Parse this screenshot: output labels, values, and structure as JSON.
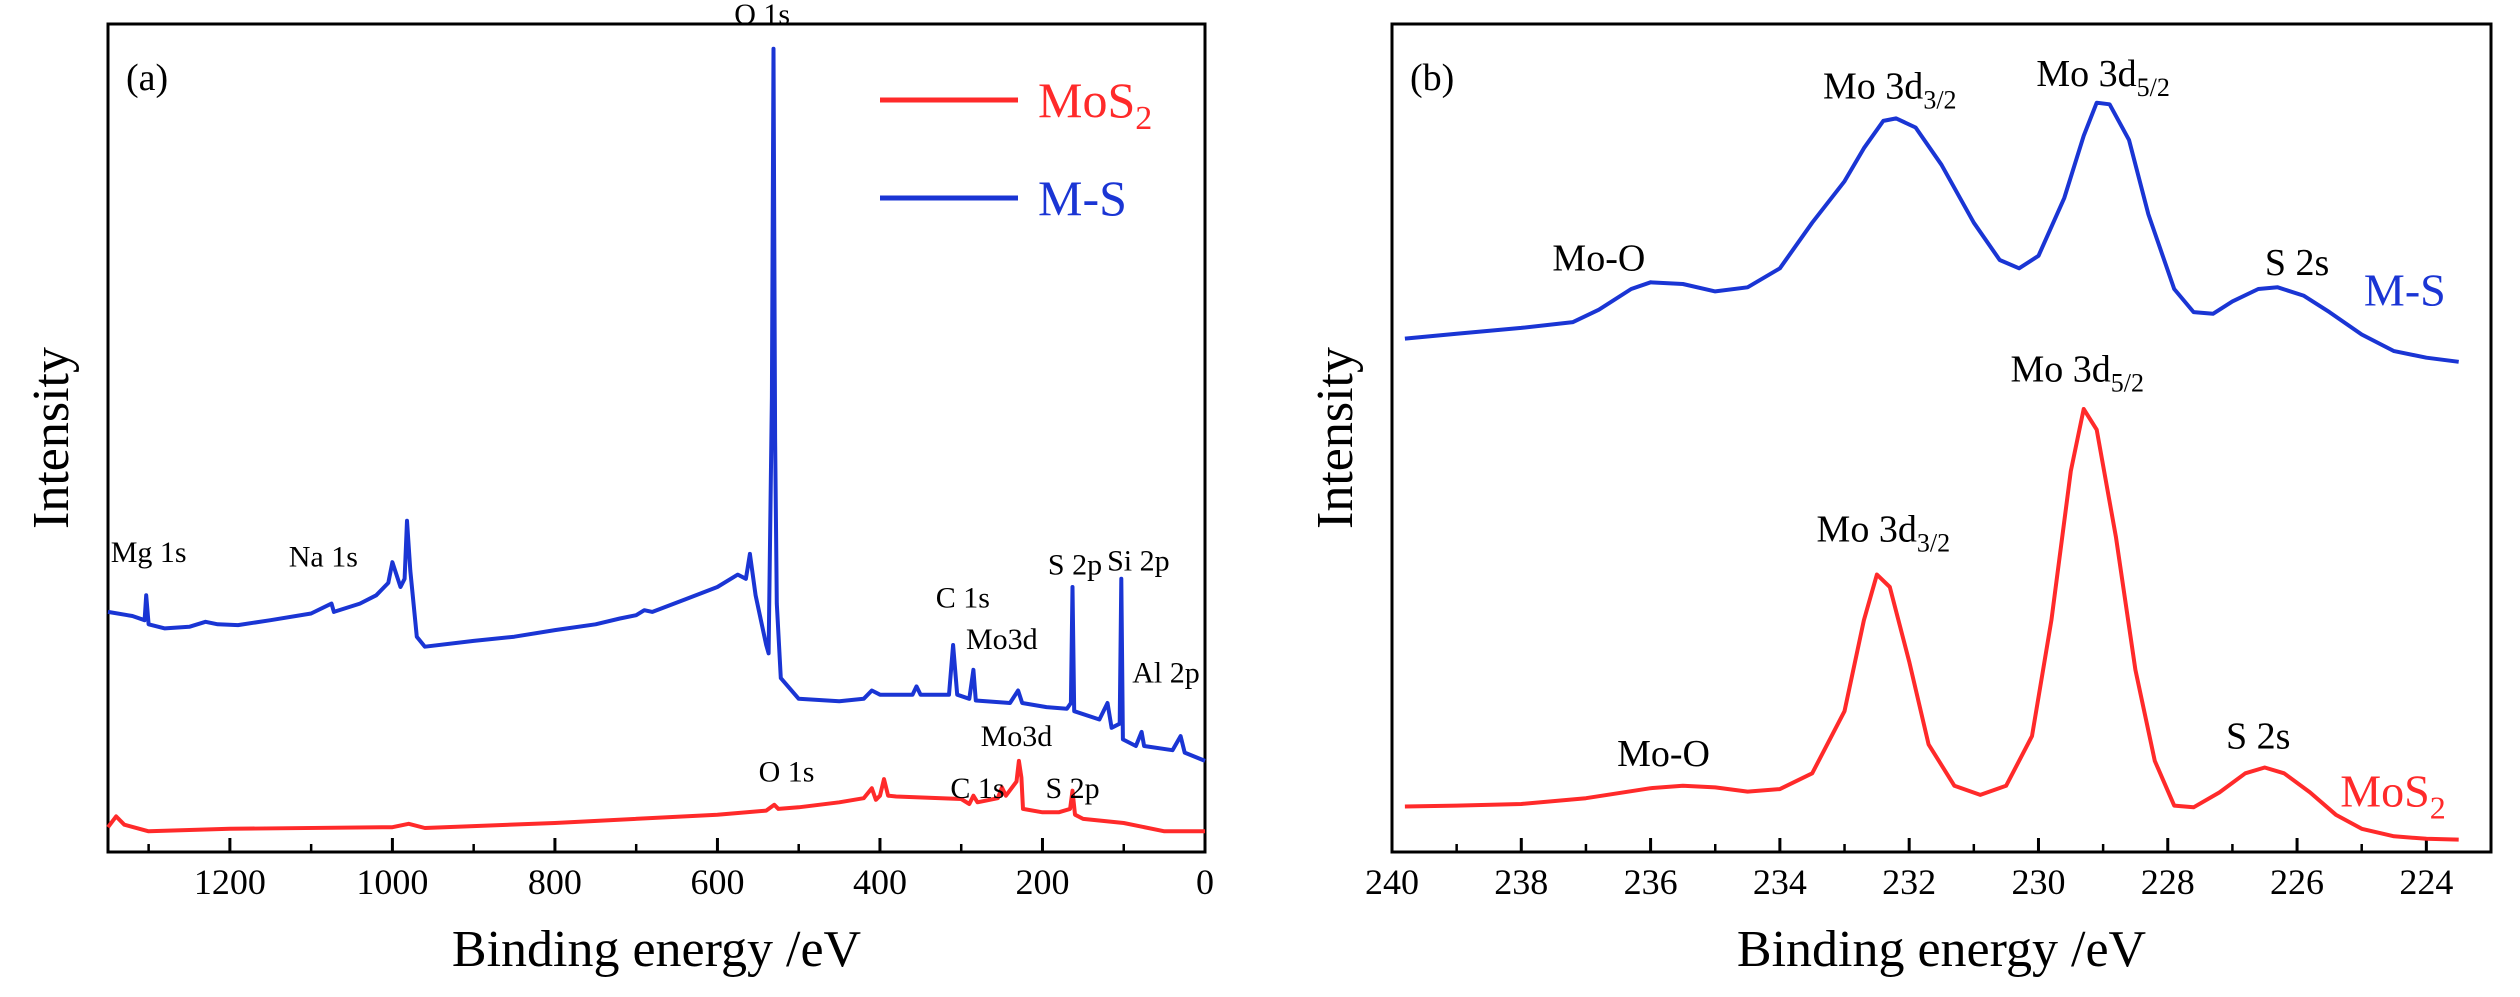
{
  "chart_data": [
    {
      "type": "line",
      "panel_label": "(a)",
      "xlabel": "Binding energy /eV",
      "ylabel": "Intensity",
      "xlim": [
        1350,
        0
      ],
      "ylim": [
        0,
        100
      ],
      "x_reversed": true,
      "xticks": [
        1200,
        1000,
        800,
        600,
        400,
        200,
        0
      ],
      "y_tick_labels": false,
      "legend": {
        "placement": "top-right",
        "entries": [
          {
            "label": "MoS",
            "sub": "2",
            "color": "#ff2a2a"
          },
          {
            "label": "M-S",
            "sub": "",
            "color": "#1a35d4"
          }
        ]
      },
      "series": [
        {
          "name": "M-S",
          "color": "#1a35d4",
          "points": [
            [
              1350,
              29
            ],
            [
              1320,
              28.5
            ],
            [
              1305,
              28
            ],
            [
              1303,
              31
            ],
            [
              1300,
              27.5
            ],
            [
              1280,
              27
            ],
            [
              1250,
              27.2
            ],
            [
              1230,
              27.8
            ],
            [
              1215,
              27.5
            ],
            [
              1190,
              27.4
            ],
            [
              1150,
              28
            ],
            [
              1100,
              28.8
            ],
            [
              1075,
              30
            ],
            [
              1072,
              29
            ],
            [
              1040,
              30
            ],
            [
              1020,
              31
            ],
            [
              1005,
              32.5
            ],
            [
              1000,
              35
            ],
            [
              990,
              32
            ],
            [
              985,
              33
            ],
            [
              982,
              40
            ],
            [
              978,
              34
            ],
            [
              970,
              26
            ],
            [
              960,
              24.8
            ],
            [
              900,
              25.5
            ],
            [
              850,
              26
            ],
            [
              800,
              26.8
            ],
            [
              750,
              27.5
            ],
            [
              720,
              28.2
            ],
            [
              700,
              28.6
            ],
            [
              690,
              29.2
            ],
            [
              680,
              29
            ],
            [
              640,
              30.5
            ],
            [
              600,
              32
            ],
            [
              575,
              33.5
            ],
            [
              565,
              33
            ],
            [
              560,
              36
            ],
            [
              553,
              31
            ],
            [
              540,
              25
            ],
            [
              537,
              24
            ],
            [
              533,
              55
            ],
            [
              531,
              97
            ],
            [
              529,
              50
            ],
            [
              527,
              30
            ],
            [
              522,
              21
            ],
            [
              500,
              18.5
            ],
            [
              450,
              18.2
            ],
            [
              420,
              18.5
            ],
            [
              410,
              19.5
            ],
            [
              400,
              19
            ],
            [
              360,
              19
            ],
            [
              355,
              20
            ],
            [
              350,
              19
            ],
            [
              315,
              19
            ],
            [
              310,
              25
            ],
            [
              305,
              19
            ],
            [
              290,
              18.5
            ],
            [
              285,
              22
            ],
            [
              282,
              18.3
            ],
            [
              240,
              18
            ],
            [
              230,
              19.5
            ],
            [
              225,
              18
            ],
            [
              195,
              17.5
            ],
            [
              170,
              17.3
            ],
            [
              165,
              18
            ],
            [
              163,
              32
            ],
            [
              161,
              17
            ],
            [
              130,
              16
            ],
            [
              120,
              18
            ],
            [
              115,
              15
            ],
            [
              105,
              15.5
            ],
            [
              103,
              33
            ],
            [
              101,
              13.6
            ],
            [
              85,
              12.8
            ],
            [
              78,
              14.5
            ],
            [
              75,
              12.8
            ],
            [
              40,
              12.3
            ],
            [
              30,
              14
            ],
            [
              25,
              12
            ],
            [
              0,
              11
            ]
          ]
        },
        {
          "name": "MoS",
          "color": "#ff2a2a",
          "points": [
            [
              1350,
              3
            ],
            [
              1340,
              4.3
            ],
            [
              1330,
              3.3
            ],
            [
              1300,
              2.5
            ],
            [
              1200,
              2.8
            ],
            [
              1000,
              3
            ],
            [
              980,
              3.4
            ],
            [
              960,
              2.9
            ],
            [
              800,
              3.5
            ],
            [
              600,
              4.5
            ],
            [
              540,
              5
            ],
            [
              530,
              5.7
            ],
            [
              525,
              5.2
            ],
            [
              500,
              5.4
            ],
            [
              450,
              6
            ],
            [
              420,
              6.5
            ],
            [
              410,
              7.7
            ],
            [
              405,
              6.3
            ],
            [
              400,
              6.8
            ],
            [
              395,
              8.8
            ],
            [
              390,
              6.8
            ],
            [
              380,
              6.7
            ],
            [
              300,
              6.4
            ],
            [
              290,
              5.8
            ],
            [
              285,
              6.8
            ],
            [
              280,
              6
            ],
            [
              255,
              6.5
            ],
            [
              250,
              7.8
            ],
            [
              245,
              6.8
            ],
            [
              232,
              8.5
            ],
            [
              229,
              11
            ],
            [
              226,
              9
            ],
            [
              224,
              5.2
            ],
            [
              200,
              4.8
            ],
            [
              180,
              4.8
            ],
            [
              166,
              5.2
            ],
            [
              163,
              7.4
            ],
            [
              160,
              4.5
            ],
            [
              150,
              4
            ],
            [
              100,
              3.5
            ],
            [
              50,
              2.5
            ],
            [
              0,
              2.5
            ]
          ]
        }
      ],
      "annotations": [
        {
          "text": "O 1s",
          "x": 545,
          "y": 100
        },
        {
          "text": "Mg 1s",
          "x": 1300,
          "y": 35
        },
        {
          "text": "Na 1s",
          "x": 1085,
          "y": 34.5
        },
        {
          "text": "C 1s",
          "x": 298,
          "y": 29.5
        },
        {
          "text": "Mo3d",
          "x": 250,
          "y": 24.5
        },
        {
          "text": "S 2p",
          "x": 160,
          "y": 33.5
        },
        {
          "text": "Si 2p",
          "x": 82,
          "y": 34
        },
        {
          "text": "Al 2p",
          "x": 48,
          "y": 20.5
        },
        {
          "text": "O 1s",
          "x": 515,
          "y": 8.5
        },
        {
          "text": "C 1s",
          "x": 280,
          "y": 6.5
        },
        {
          "text": "Mo3d",
          "x": 232,
          "y": 12.8
        },
        {
          "text": "S 2p",
          "x": 163,
          "y": 6.5
        }
      ]
    },
    {
      "type": "line",
      "panel_label": "(b)",
      "xlabel": "Binding energy /eV",
      "ylabel": "Intensity",
      "xlim": [
        240,
        223
      ],
      "ylim": [
        0,
        100
      ],
      "x_reversed": true,
      "xticks": [
        240,
        238,
        236,
        234,
        232,
        230,
        228,
        226,
        224
      ],
      "y_tick_labels": false,
      "series": [
        {
          "name": "M-S",
          "color": "#1a35d4",
          "points": [
            [
              239.8,
              62
            ],
            [
              239,
              62.6
            ],
            [
              238,
              63.3
            ],
            [
              237.2,
              64
            ],
            [
              236.8,
              65.5
            ],
            [
              236.3,
              68
            ],
            [
              236,
              68.8
            ],
            [
              235.5,
              68.6
            ],
            [
              235,
              67.7
            ],
            [
              234.5,
              68.2
            ],
            [
              234,
              70.5
            ],
            [
              233.5,
              76
            ],
            [
              233,
              81
            ],
            [
              232.7,
              85
            ],
            [
              232.4,
              88.3
            ],
            [
              232.2,
              88.6
            ],
            [
              231.9,
              87.5
            ],
            [
              231.5,
              83
            ],
            [
              231,
              76
            ],
            [
              230.6,
              71.5
            ],
            [
              230.3,
              70.5
            ],
            [
              230,
              72
            ],
            [
              229.6,
              79
            ],
            [
              229.3,
              86.5
            ],
            [
              229.1,
              90.5
            ],
            [
              228.9,
              90.3
            ],
            [
              228.6,
              86
            ],
            [
              228.3,
              77
            ],
            [
              227.9,
              68
            ],
            [
              227.6,
              65.2
            ],
            [
              227.3,
              65
            ],
            [
              227,
              66.5
            ],
            [
              226.6,
              68
            ],
            [
              226.3,
              68.2
            ],
            [
              225.9,
              67.2
            ],
            [
              225.5,
              65.2
            ],
            [
              225,
              62.5
            ],
            [
              224.5,
              60.5
            ],
            [
              224,
              59.7
            ],
            [
              223.5,
              59.2
            ]
          ]
        },
        {
          "name": "MoS",
          "color": "#ff2a2a",
          "points": [
            [
              239.8,
              5.5
            ],
            [
              239,
              5.6
            ],
            [
              238,
              5.8
            ],
            [
              237,
              6.5
            ],
            [
              236,
              7.7
            ],
            [
              235.5,
              8
            ],
            [
              235,
              7.8
            ],
            [
              234.5,
              7.3
            ],
            [
              234,
              7.6
            ],
            [
              233.5,
              9.5
            ],
            [
              233,
              17
            ],
            [
              232.7,
              28
            ],
            [
              232.5,
              33.5
            ],
            [
              232.3,
              32
            ],
            [
              232,
              23
            ],
            [
              231.7,
              13
            ],
            [
              231.3,
              8
            ],
            [
              230.9,
              6.9
            ],
            [
              230.5,
              8
            ],
            [
              230.1,
              14
            ],
            [
              229.8,
              28
            ],
            [
              229.5,
              46
            ],
            [
              229.3,
              53.5
            ],
            [
              229.1,
              51
            ],
            [
              228.8,
              38
            ],
            [
              228.5,
              22
            ],
            [
              228.2,
              11
            ],
            [
              227.9,
              5.6
            ],
            [
              227.6,
              5.4
            ],
            [
              227.2,
              7.2
            ],
            [
              226.8,
              9.5
            ],
            [
              226.5,
              10.2
            ],
            [
              226.2,
              9.5
            ],
            [
              225.8,
              7.2
            ],
            [
              225.4,
              4.5
            ],
            [
              225,
              2.8
            ],
            [
              224.5,
              1.9
            ],
            [
              224,
              1.6
            ],
            [
              223.5,
              1.5
            ]
          ]
        }
      ],
      "annotations": [
        {
          "text": "Mo-O",
          "x": 236.8,
          "y": 70.2,
          "sub": ""
        },
        {
          "text": "Mo 3d",
          "x": 232.3,
          "y": 91,
          "sub": "3/2"
        },
        {
          "text": "Mo 3d",
          "x": 229,
          "y": 92.5,
          "sub": "5/2"
        },
        {
          "text": "S 2s",
          "x": 226,
          "y": 69.7,
          "sub": ""
        },
        {
          "text": "Mo 3d",
          "x": 232.4,
          "y": 37.5,
          "sub": "3/2"
        },
        {
          "text": "Mo 3d",
          "x": 229.4,
          "y": 56.8,
          "sub": "5/2"
        },
        {
          "text": "Mo-O",
          "x": 235.8,
          "y": 10.4,
          "sub": ""
        },
        {
          "text": "S 2s",
          "x": 226.6,
          "y": 12.5,
          "sub": ""
        }
      ],
      "series_labels": [
        {
          "text": "M-S",
          "sub": "",
          "color": "#1a35d4",
          "x": 223.7,
          "y": 66
        },
        {
          "text": "MoS",
          "sub": "2",
          "color": "#ff2a2a",
          "x": 223.7,
          "y": 5.5
        }
      ]
    }
  ]
}
